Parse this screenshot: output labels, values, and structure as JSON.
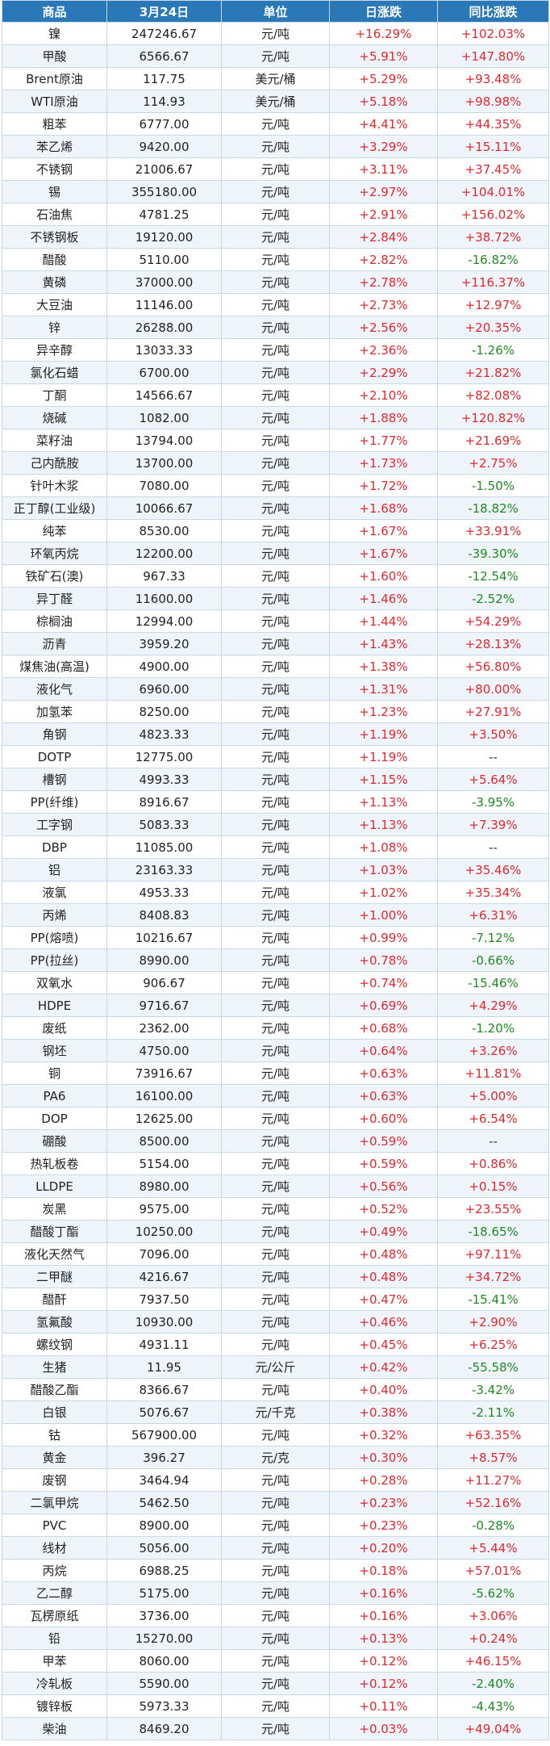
{
  "headers": {
    "name": "商品",
    "price": "3月24日",
    "unit": "单位",
    "daily": "日涨跌",
    "yoy": "同比涨跌"
  },
  "rows": [
    {
      "name": "镍",
      "price": "247246.67",
      "unit": "元/吨",
      "daily": "+16.29%",
      "yoy": "+102.03%"
    },
    {
      "name": "甲酸",
      "price": "6566.67",
      "unit": "元/吨",
      "daily": "+5.91%",
      "yoy": "+147.80%"
    },
    {
      "name": "Brent原油",
      "price": "117.75",
      "unit": "美元/桶",
      "daily": "+5.29%",
      "yoy": "+93.48%"
    },
    {
      "name": "WTI原油",
      "price": "114.93",
      "unit": "美元/桶",
      "daily": "+5.18%",
      "yoy": "+98.98%"
    },
    {
      "name": "粗苯",
      "price": "6777.00",
      "unit": "元/吨",
      "daily": "+4.41%",
      "yoy": "+44.35%"
    },
    {
      "name": "苯乙烯",
      "price": "9420.00",
      "unit": "元/吨",
      "daily": "+3.29%",
      "yoy": "+15.11%"
    },
    {
      "name": "不锈钢",
      "price": "21006.67",
      "unit": "元/吨",
      "daily": "+3.11%",
      "yoy": "+37.45%"
    },
    {
      "name": "锡",
      "price": "355180.00",
      "unit": "元/吨",
      "daily": "+2.97%",
      "yoy": "+104.01%"
    },
    {
      "name": "石油焦",
      "price": "4781.25",
      "unit": "元/吨",
      "daily": "+2.91%",
      "yoy": "+156.02%"
    },
    {
      "name": "不锈钢板",
      "price": "19120.00",
      "unit": "元/吨",
      "daily": "+2.84%",
      "yoy": "+38.72%"
    },
    {
      "name": "醋酸",
      "price": "5110.00",
      "unit": "元/吨",
      "daily": "+2.82%",
      "yoy": "-16.82%"
    },
    {
      "name": "黄磷",
      "price": "37000.00",
      "unit": "元/吨",
      "daily": "+2.78%",
      "yoy": "+116.37%"
    },
    {
      "name": "大豆油",
      "price": "11146.00",
      "unit": "元/吨",
      "daily": "+2.73%",
      "yoy": "+12.97%"
    },
    {
      "name": "锌",
      "price": "26288.00",
      "unit": "元/吨",
      "daily": "+2.56%",
      "yoy": "+20.35%"
    },
    {
      "name": "异辛醇",
      "price": "13033.33",
      "unit": "元/吨",
      "daily": "+2.36%",
      "yoy": "-1.26%"
    },
    {
      "name": "氯化石蜡",
      "price": "6700.00",
      "unit": "元/吨",
      "daily": "+2.29%",
      "yoy": "+21.82%"
    },
    {
      "name": "丁酮",
      "price": "14566.67",
      "unit": "元/吨",
      "daily": "+2.10%",
      "yoy": "+82.08%"
    },
    {
      "name": "烧碱",
      "price": "1082.00",
      "unit": "元/吨",
      "daily": "+1.88%",
      "yoy": "+120.82%"
    },
    {
      "name": "菜籽油",
      "price": "13794.00",
      "unit": "元/吨",
      "daily": "+1.77%",
      "yoy": "+21.69%"
    },
    {
      "name": "己内酰胺",
      "price": "13700.00",
      "unit": "元/吨",
      "daily": "+1.73%",
      "yoy": "+2.75%"
    },
    {
      "name": "针叶木浆",
      "price": "7080.00",
      "unit": "元/吨",
      "daily": "+1.72%",
      "yoy": "-1.50%"
    },
    {
      "name": "正丁醇(工业级)",
      "price": "10066.67",
      "unit": "元/吨",
      "daily": "+1.68%",
      "yoy": "-18.82%"
    },
    {
      "name": "纯苯",
      "price": "8530.00",
      "unit": "元/吨",
      "daily": "+1.67%",
      "yoy": "+33.91%"
    },
    {
      "name": "环氧丙烷",
      "price": "12200.00",
      "unit": "元/吨",
      "daily": "+1.67%",
      "yoy": "-39.30%"
    },
    {
      "name": "铁矿石(澳)",
      "price": "967.33",
      "unit": "元/吨",
      "daily": "+1.60%",
      "yoy": "-12.54%"
    },
    {
      "name": "异丁醛",
      "price": "11600.00",
      "unit": "元/吨",
      "daily": "+1.46%",
      "yoy": "-2.52%"
    },
    {
      "name": "棕榈油",
      "price": "12994.00",
      "unit": "元/吨",
      "daily": "+1.44%",
      "yoy": "+54.29%"
    },
    {
      "name": "沥青",
      "price": "3959.20",
      "unit": "元/吨",
      "daily": "+1.43%",
      "yoy": "+28.13%"
    },
    {
      "name": "煤焦油(高温)",
      "price": "4900.00",
      "unit": "元/吨",
      "daily": "+1.38%",
      "yoy": "+56.80%"
    },
    {
      "name": "液化气",
      "price": "6960.00",
      "unit": "元/吨",
      "daily": "+1.31%",
      "yoy": "+80.00%"
    },
    {
      "name": "加氢苯",
      "price": "8250.00",
      "unit": "元/吨",
      "daily": "+1.23%",
      "yoy": "+27.91%"
    },
    {
      "name": "角钢",
      "price": "4823.33",
      "unit": "元/吨",
      "daily": "+1.19%",
      "yoy": "+3.50%"
    },
    {
      "name": "DOTP",
      "price": "12775.00",
      "unit": "元/吨",
      "daily": "+1.19%",
      "yoy": "--"
    },
    {
      "name": "槽钢",
      "price": "4993.33",
      "unit": "元/吨",
      "daily": "+1.15%",
      "yoy": "+5.64%"
    },
    {
      "name": "PP(纤维)",
      "price": "8916.67",
      "unit": "元/吨",
      "daily": "+1.13%",
      "yoy": "-3.95%"
    },
    {
      "name": "工字钢",
      "price": "5083.33",
      "unit": "元/吨",
      "daily": "+1.13%",
      "yoy": "+7.39%"
    },
    {
      "name": "DBP",
      "price": "11085.00",
      "unit": "元/吨",
      "daily": "+1.08%",
      "yoy": "--"
    },
    {
      "name": "铝",
      "price": "23163.33",
      "unit": "元/吨",
      "daily": "+1.03%",
      "yoy": "+35.46%"
    },
    {
      "name": "液氯",
      "price": "4953.33",
      "unit": "元/吨",
      "daily": "+1.02%",
      "yoy": "+35.34%"
    },
    {
      "name": "丙烯",
      "price": "8408.83",
      "unit": "元/吨",
      "daily": "+1.00%",
      "yoy": "+6.31%"
    },
    {
      "name": "PP(熔喷)",
      "price": "10216.67",
      "unit": "元/吨",
      "daily": "+0.99%",
      "yoy": "-7.12%"
    },
    {
      "name": "PP(拉丝)",
      "price": "8990.00",
      "unit": "元/吨",
      "daily": "+0.78%",
      "yoy": "-0.66%"
    },
    {
      "name": "双氧水",
      "price": "906.67",
      "unit": "元/吨",
      "daily": "+0.74%",
      "yoy": "-15.46%"
    },
    {
      "name": "HDPE",
      "price": "9716.67",
      "unit": "元/吨",
      "daily": "+0.69%",
      "yoy": "+4.29%"
    },
    {
      "name": "废纸",
      "price": "2362.00",
      "unit": "元/吨",
      "daily": "+0.68%",
      "yoy": "-1.20%"
    },
    {
      "name": "钢坯",
      "price": "4750.00",
      "unit": "元/吨",
      "daily": "+0.64%",
      "yoy": "+3.26%"
    },
    {
      "name": "铜",
      "price": "73916.67",
      "unit": "元/吨",
      "daily": "+0.63%",
      "yoy": "+11.81%"
    },
    {
      "name": "PA6",
      "price": "16100.00",
      "unit": "元/吨",
      "daily": "+0.63%",
      "yoy": "+5.00%"
    },
    {
      "name": "DOP",
      "price": "12625.00",
      "unit": "元/吨",
      "daily": "+0.60%",
      "yoy": "+6.54%"
    },
    {
      "name": "硼酸",
      "price": "8500.00",
      "unit": "元/吨",
      "daily": "+0.59%",
      "yoy": "--"
    },
    {
      "name": "热轧板卷",
      "price": "5154.00",
      "unit": "元/吨",
      "daily": "+0.59%",
      "yoy": "+0.86%"
    },
    {
      "name": "LLDPE",
      "price": "8980.00",
      "unit": "元/吨",
      "daily": "+0.56%",
      "yoy": "+0.15%"
    },
    {
      "name": "炭黑",
      "price": "9575.00",
      "unit": "元/吨",
      "daily": "+0.52%",
      "yoy": "+23.55%"
    },
    {
      "name": "醋酸丁酯",
      "price": "10250.00",
      "unit": "元/吨",
      "daily": "+0.49%",
      "yoy": "-18.65%"
    },
    {
      "name": "液化天然气",
      "price": "7096.00",
      "unit": "元/吨",
      "daily": "+0.48%",
      "yoy": "+97.11%"
    },
    {
      "name": "二甲醚",
      "price": "4216.67",
      "unit": "元/吨",
      "daily": "+0.48%",
      "yoy": "+34.72%"
    },
    {
      "name": "醋酐",
      "price": "7937.50",
      "unit": "元/吨",
      "daily": "+0.47%",
      "yoy": "-15.41%"
    },
    {
      "name": "氢氟酸",
      "price": "10930.00",
      "unit": "元/吨",
      "daily": "+0.46%",
      "yoy": "+2.90%"
    },
    {
      "name": "螺纹钢",
      "price": "4931.11",
      "unit": "元/吨",
      "daily": "+0.45%",
      "yoy": "+6.25%"
    },
    {
      "name": "生猪",
      "price": "11.95",
      "unit": "元/公斤",
      "daily": "+0.42%",
      "yoy": "-55.58%"
    },
    {
      "name": "醋酸乙酯",
      "price": "8366.67",
      "unit": "元/吨",
      "daily": "+0.40%",
      "yoy": "-3.42%"
    },
    {
      "name": "白银",
      "price": "5076.67",
      "unit": "元/千克",
      "daily": "+0.38%",
      "yoy": "-2.11%"
    },
    {
      "name": "钴",
      "price": "567900.00",
      "unit": "元/吨",
      "daily": "+0.32%",
      "yoy": "+63.35%"
    },
    {
      "name": "黄金",
      "price": "396.27",
      "unit": "元/克",
      "daily": "+0.30%",
      "yoy": "+8.57%"
    },
    {
      "name": "废钢",
      "price": "3464.94",
      "unit": "元/吨",
      "daily": "+0.28%",
      "yoy": "+11.27%"
    },
    {
      "name": "二氯甲烷",
      "price": "5462.50",
      "unit": "元/吨",
      "daily": "+0.23%",
      "yoy": "+52.16%"
    },
    {
      "name": "PVC",
      "price": "8900.00",
      "unit": "元/吨",
      "daily": "+0.23%",
      "yoy": "-0.28%"
    },
    {
      "name": "线材",
      "price": "5056.00",
      "unit": "元/吨",
      "daily": "+0.20%",
      "yoy": "+5.44%"
    },
    {
      "name": "丙烷",
      "price": "6988.25",
      "unit": "元/吨",
      "daily": "+0.18%",
      "yoy": "+57.01%"
    },
    {
      "name": "乙二醇",
      "price": "5175.00",
      "unit": "元/吨",
      "daily": "+0.16%",
      "yoy": "-5.62%"
    },
    {
      "name": "瓦楞原纸",
      "price": "3736.00",
      "unit": "元/吨",
      "daily": "+0.16%",
      "yoy": "+3.06%"
    },
    {
      "name": "铅",
      "price": "15270.00",
      "unit": "元/吨",
      "daily": "+0.13%",
      "yoy": "+0.24%"
    },
    {
      "name": "甲苯",
      "price": "8060.00",
      "unit": "元/吨",
      "daily": "+0.12%",
      "yoy": "+46.15%"
    },
    {
      "name": "冷轧板",
      "price": "5590.00",
      "unit": "元/吨",
      "daily": "+0.12%",
      "yoy": "-2.40%"
    },
    {
      "name": "镀锌板",
      "price": "5973.33",
      "unit": "元/吨",
      "daily": "+0.11%",
      "yoy": "-4.43%"
    },
    {
      "name": "柴油",
      "price": "8469.20",
      "unit": "元/吨",
      "daily": "+0.03%",
      "yoy": "+49.04%"
    }
  ],
  "colors": {
    "header_bg": "#2a78b8",
    "positive": "#e0282e",
    "negative": "#1f8a1f",
    "row_alt": "#eef4fa",
    "border": "#c7d9e8"
  }
}
